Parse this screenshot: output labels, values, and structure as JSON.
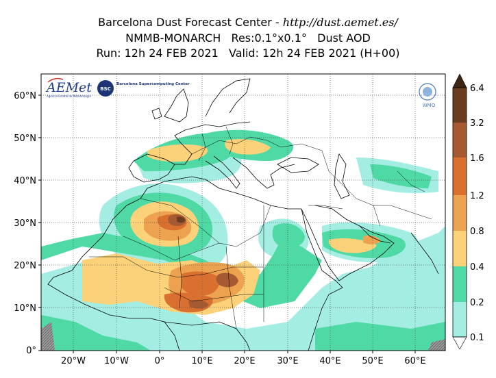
{
  "title": {
    "line1_prefix": "Barcelona Dust Forecast Center - ",
    "line1_url": "http://dust.aemet.es/",
    "line2": "NMMB-MONARCH   Res:0.1°x0.1°   Dust AOD",
    "line3": "Run: 12h 24 FEB 2021   Valid: 12h 24 FEB 2021 (H+00)"
  },
  "lat_labels": [
    "0°",
    "10°N",
    "20°N",
    "30°N",
    "40°N",
    "50°N",
    "60°N"
  ],
  "lon_labels": [
    "20°W",
    "10°W",
    "0°",
    "10°E",
    "20°E",
    "30°E",
    "40°E",
    "50°E",
    "60°E"
  ],
  "colorbar": {
    "labels": [
      "0.1",
      "0.2",
      "0.4",
      "0.8",
      "1.2",
      "1.6",
      "3.2",
      "6.4"
    ],
    "colors": [
      "#a4ede3",
      "#4fd9a5",
      "#fbd27a",
      "#eda24f",
      "#d9702f",
      "#a65a32",
      "#6a3d1f",
      "#3d2513"
    ]
  },
  "logos": {
    "aemet": "AEMet",
    "aemet_sub": "Agencia Estatal de Meteorología",
    "bsc": "BSC",
    "bsc_text": "Barcelona Supercomputing Center",
    "wmo": "WMO"
  }
}
